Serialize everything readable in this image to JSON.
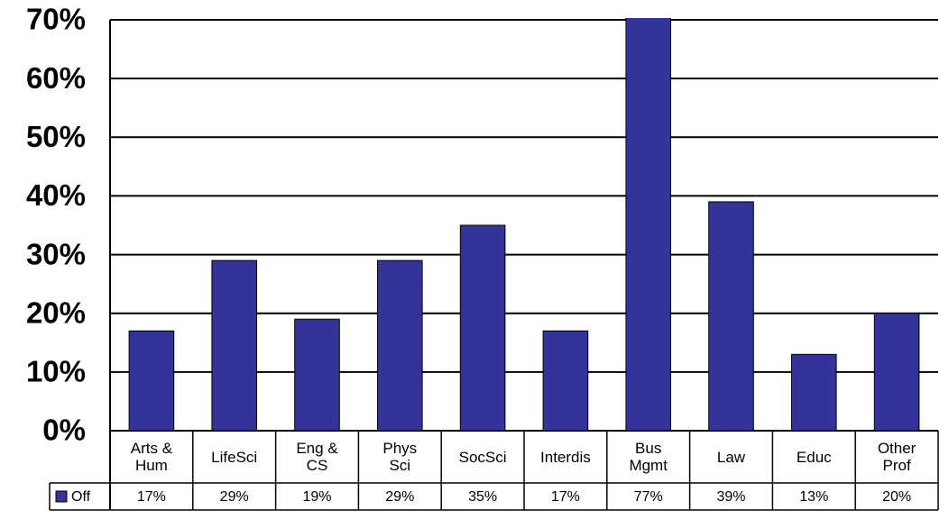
{
  "chart_data": {
    "type": "bar",
    "categories": [
      "Arts &\nHum",
      "LifeSci",
      "Eng &\nCS",
      "Phys\nSci",
      "SocSci",
      "Interdis",
      "Bus\nMgmt",
      "Law",
      "Educ",
      "Other\nProf"
    ],
    "series": [
      {
        "name": "Off",
        "color": "#333399",
        "values": [
          17,
          29,
          19,
          29,
          35,
          17,
          77,
          39,
          13,
          20
        ],
        "value_labels": [
          "17%",
          "29%",
          "19%",
          "29%",
          "35%",
          "17%",
          "77%",
          "39%",
          "13%",
          "20%"
        ]
      }
    ],
    "ylim": [
      0,
      70
    ],
    "yticks": [
      {
        "value": 0,
        "label": "0%"
      },
      {
        "value": 10,
        "label": "10%"
      },
      {
        "value": 20,
        "label": "20%"
      },
      {
        "value": 30,
        "label": "30%"
      },
      {
        "value": 40,
        "label": "40%"
      },
      {
        "value": 50,
        "label": "50%"
      },
      {
        "value": 60,
        "label": "60%"
      },
      {
        "value": 70,
        "label": "70%"
      }
    ],
    "grid": true
  }
}
